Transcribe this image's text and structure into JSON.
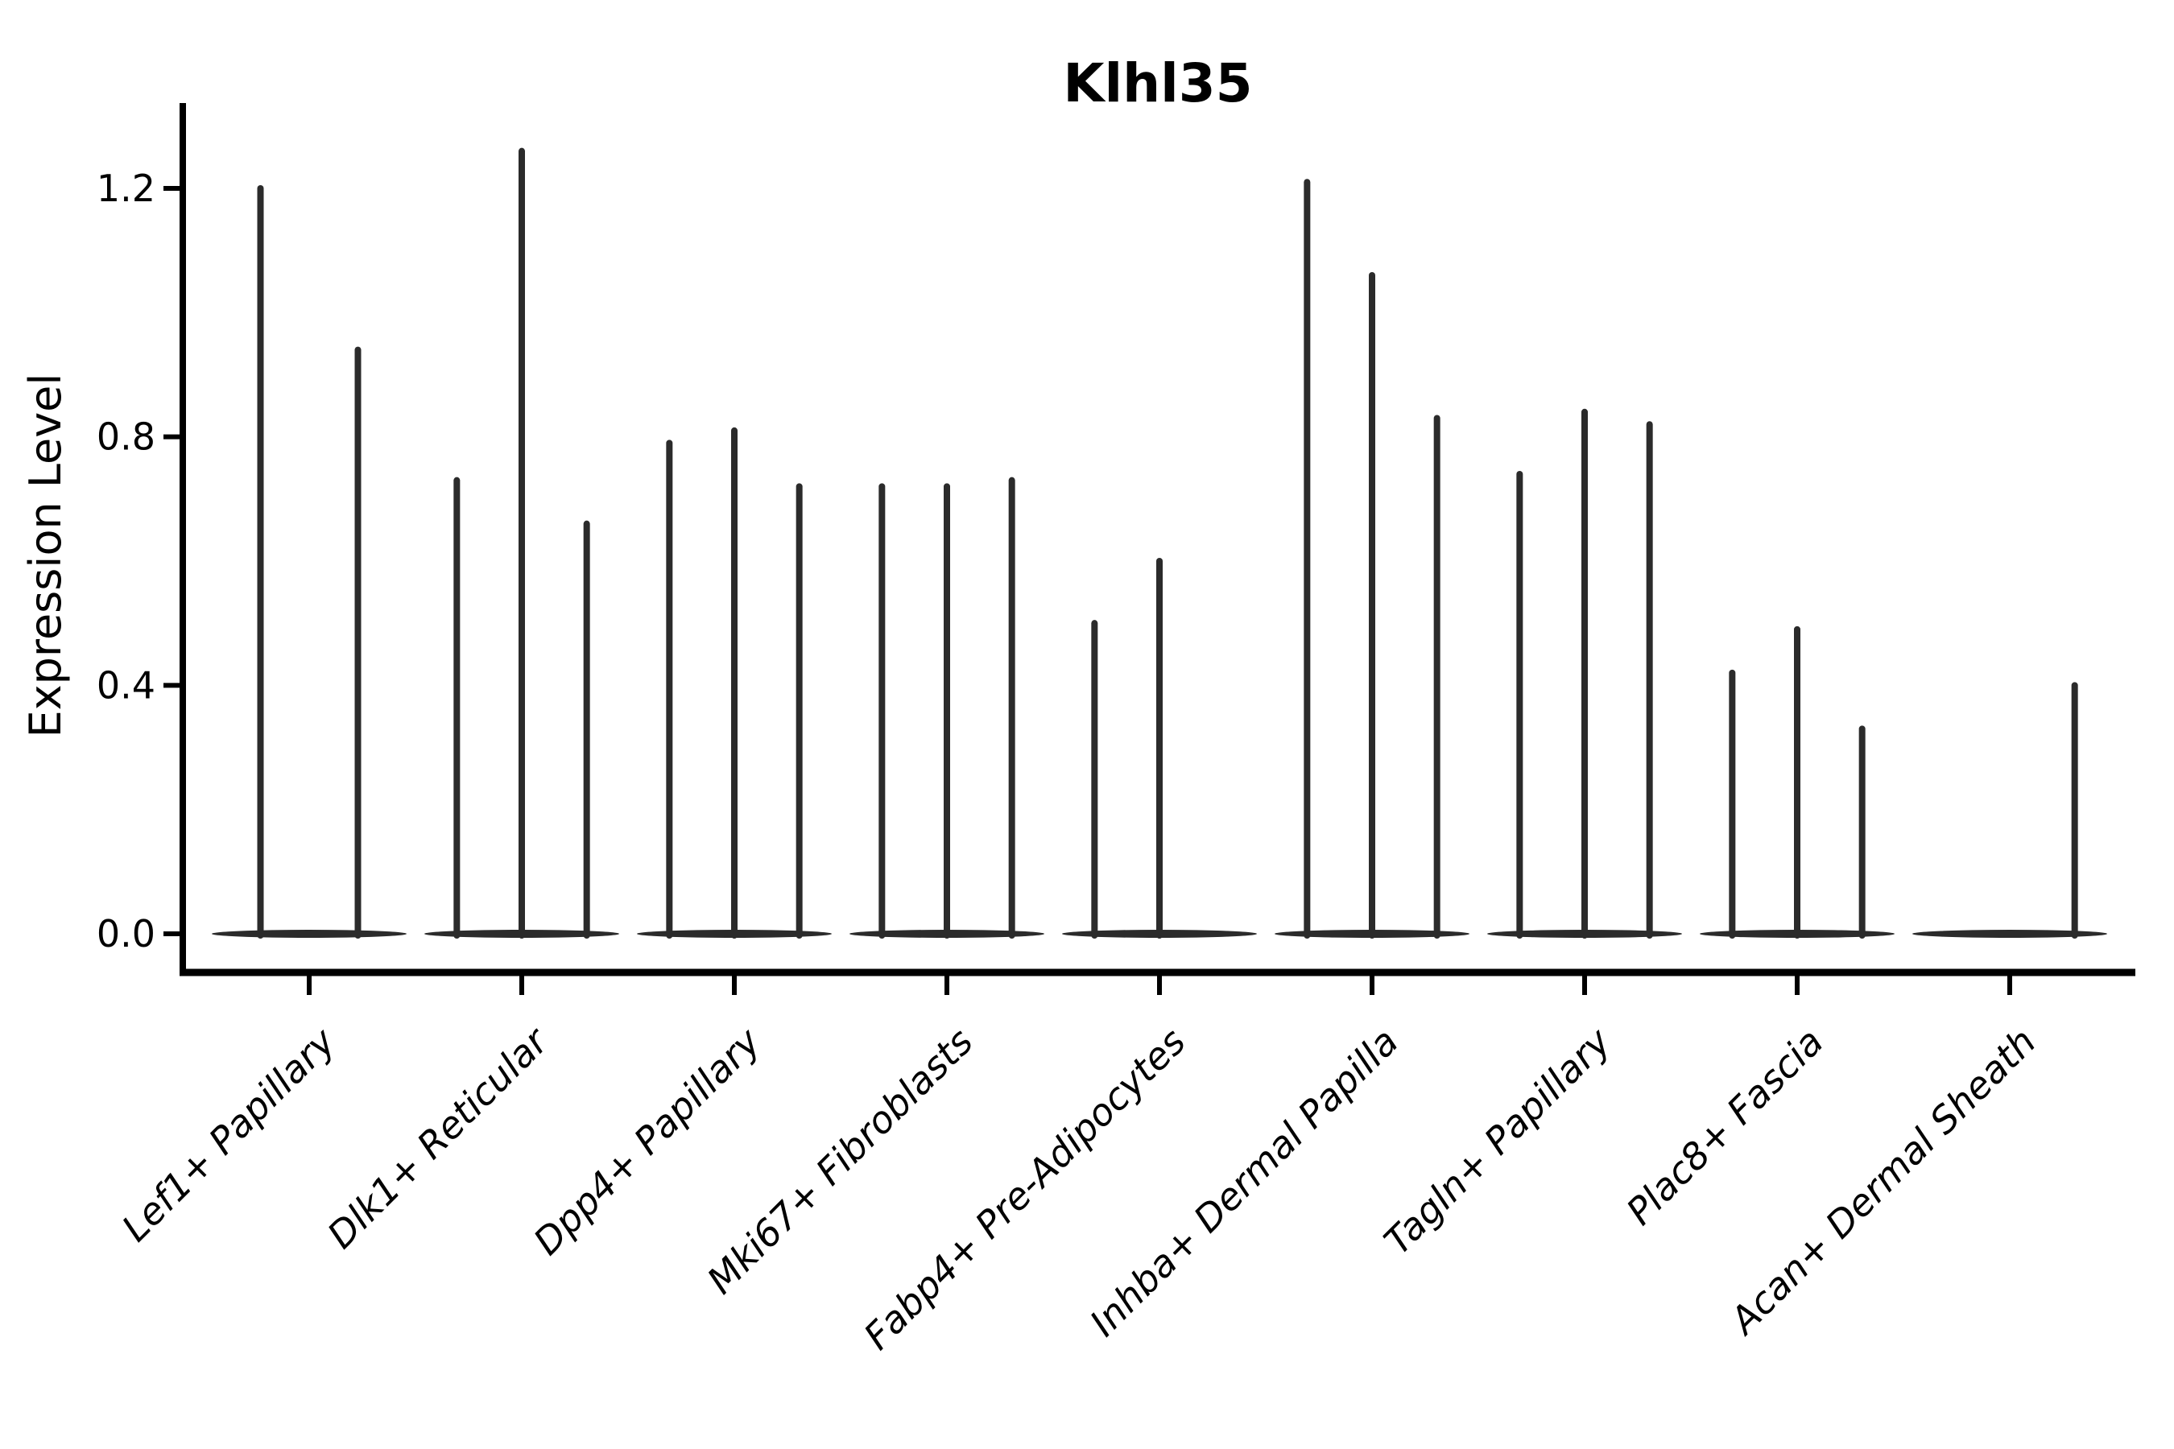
{
  "figure": {
    "background": "#ffffff"
  },
  "chart_data": {
    "type": "violin",
    "title": "Klhl35",
    "ylabel": "Expression Level",
    "xlabel": "",
    "ylim": [
      0,
      1.335
    ],
    "yticks": [
      0.0,
      0.4,
      0.8,
      1.2
    ],
    "ytick_labels": [
      "0.0",
      "0.4",
      "0.8",
      "1.2"
    ],
    "grid": false,
    "legend": "none",
    "line_color": "#2b2b2b",
    "axis_color": "#000000",
    "categories": [
      "Lef1+ Papillary",
      "Dlk1+ Reticular",
      "Dpp4+ Papillary",
      "Mki67+ Fibroblasts",
      "Fabp4+ Pre-Adipocytes",
      "Inhba+ Dermal Papilla",
      "Tagln+ Papillary",
      "Plac8+ Fascia",
      "Acan+ Dermal Sheath"
    ],
    "series": [
      {
        "category": "Lef1+ Papillary",
        "violin_maxima": [
          1.2,
          0.94
        ]
      },
      {
        "category": "Dlk1+ Reticular",
        "violin_maxima": [
          0.73,
          1.26,
          0.66
        ]
      },
      {
        "category": "Dpp4+ Papillary",
        "violin_maxima": [
          0.79,
          0.81,
          0.72
        ]
      },
      {
        "category": "Mki67+ Fibroblasts",
        "violin_maxima": [
          0.72,
          0.72,
          0.73
        ]
      },
      {
        "category": "Fabp4+ Pre-Adipocytes",
        "violin_maxima": [
          0.5,
          0.6,
          0.0
        ]
      },
      {
        "category": "Inhba+ Dermal Papilla",
        "violin_maxima": [
          1.21,
          1.06,
          0.83
        ]
      },
      {
        "category": "Tagln+ Papillary",
        "violin_maxima": [
          0.74,
          0.84,
          0.82
        ]
      },
      {
        "category": "Plac8+ Fascia",
        "violin_maxima": [
          0.42,
          0.49,
          0.33
        ]
      },
      {
        "category": "Acan+ Dermal Sheath",
        "violin_maxima": [
          0.0,
          0.0,
          0.4
        ]
      }
    ]
  }
}
